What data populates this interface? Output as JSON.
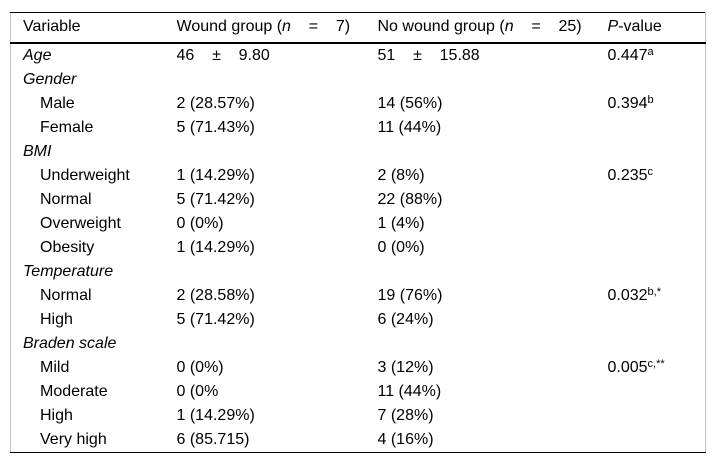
{
  "table": {
    "header": {
      "variable": "Variable",
      "wound_prefix": "Wound group (",
      "wound_n": "n",
      "wound_suffix": "    =    7)",
      "nowound_prefix": "No wound group (",
      "nowound_n": "n",
      "nowound_suffix": "    =    25)",
      "pvalue_italic": "P",
      "pvalue_suffix": "-value"
    },
    "rows": [
      {
        "label": "Age",
        "italic": true,
        "indent": false,
        "wound": "46    ±    9.80",
        "nowound": "51    ±    15.88",
        "p": "0.447",
        "p_sup": "a"
      },
      {
        "label": "Gender",
        "italic": true,
        "indent": false
      },
      {
        "label": "Male",
        "italic": false,
        "indent": true,
        "wound": "2 (28.57%)",
        "nowound": "14 (56%)",
        "p": "0.394",
        "p_sup": "b"
      },
      {
        "label": "Female",
        "italic": false,
        "indent": true,
        "wound": "5 (71.43%)",
        "nowound": "11 (44%)"
      },
      {
        "label": "BMI",
        "italic": true,
        "indent": false
      },
      {
        "label": "Underweight",
        "italic": false,
        "indent": true,
        "wound": "1 (14.29%)",
        "nowound": "2 (8%)",
        "p": "0.235",
        "p_sup": "c"
      },
      {
        "label": "Normal",
        "italic": false,
        "indent": true,
        "wound": "5 (71.42%)",
        "nowound": "22 (88%)"
      },
      {
        "label": "Overweight",
        "italic": false,
        "indent": true,
        "wound": "0 (0%)",
        "nowound": "1 (4%)"
      },
      {
        "label": "Obesity",
        "italic": false,
        "indent": true,
        "wound": "1 (14.29%)",
        "nowound": "0 (0%)"
      },
      {
        "label": "Temperature",
        "italic": true,
        "indent": false
      },
      {
        "label": "Normal",
        "italic": false,
        "indent": true,
        "wound": "2 (28.58%)",
        "nowound": "19 (76%)",
        "p": "0.032",
        "p_sup": "b,*"
      },
      {
        "label": "High",
        "italic": false,
        "indent": true,
        "wound": "5 (71.42%)",
        "nowound": "6 (24%)"
      },
      {
        "label": "Braden scale",
        "italic": true,
        "indent": false
      },
      {
        "label": "Mild",
        "italic": false,
        "indent": true,
        "wound": "0 (0%)",
        "nowound": "3 (12%)",
        "p": "0.005",
        "p_sup": "c,**"
      },
      {
        "label": "Moderate",
        "italic": false,
        "indent": true,
        "wound": "0 (0%",
        "nowound": "11 (44%)"
      },
      {
        "label": "High",
        "italic": false,
        "indent": true,
        "wound": "1 (14.29%)",
        "nowound": "7 (28%)"
      },
      {
        "label": "Very high",
        "italic": false,
        "indent": true,
        "wound": "6 (85.715)",
        "nowound": "4 (16%)"
      }
    ],
    "colors": {
      "text": "#000000",
      "background": "#ffffff",
      "horizontal_rule": "#000000",
      "side_rule": "#c4c4c4"
    }
  }
}
